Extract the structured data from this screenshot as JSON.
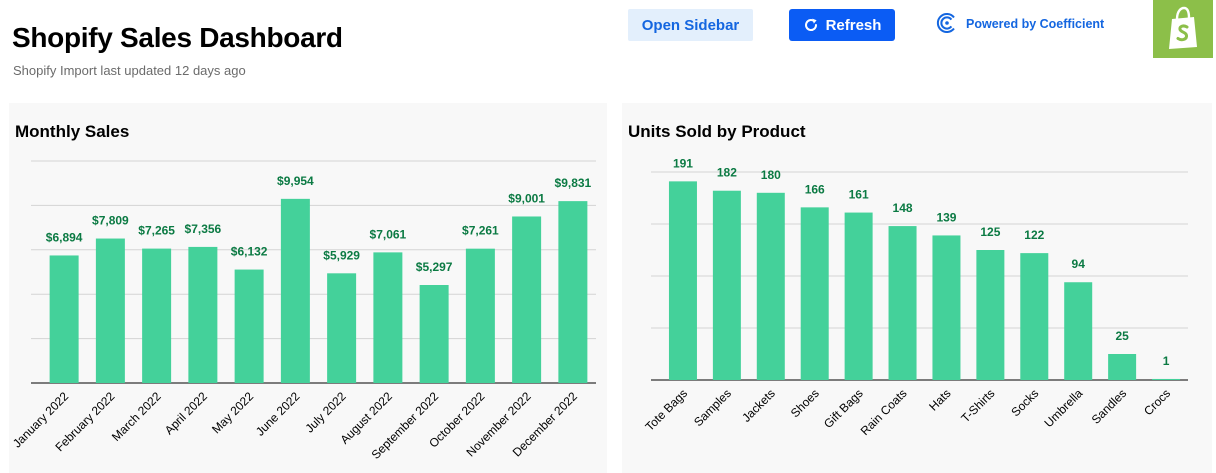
{
  "header": {
    "title": "Shopify Sales Dashboard",
    "subtitle": "Shopify Import last updated 12 days ago",
    "open_sidebar_label": "Open Sidebar",
    "refresh_label": "Refresh",
    "powered_by_label": "Powered by Coefficient"
  },
  "colors": {
    "bar": "#44d19a",
    "value_label": "#0b7a43",
    "accent_blue": "#0b5cf4",
    "shopify_green": "#8cbf49"
  },
  "icons": [
    "refresh-icon",
    "coefficient-logo-icon",
    "shopify-logo-icon"
  ],
  "chart_data": [
    {
      "type": "bar",
      "title": "Monthly Sales",
      "categories": [
        "January 2022",
        "February 2022",
        "March 2022",
        "April 2022",
        "May 2022",
        "June 2022",
        "July 2022",
        "August 2022",
        "September 2022",
        "October 2022",
        "November 2022",
        "December 2022"
      ],
      "values": [
        6894,
        7809,
        7265,
        7356,
        6132,
        9954,
        5929,
        7061,
        5297,
        7261,
        9001,
        9831
      ],
      "value_labels": [
        "$6,894",
        "$7,809",
        "$7,265",
        "$7,356",
        "$6,132",
        "$9,954",
        "$5,929",
        "$7,061",
        "$5,297",
        "$7,261",
        "$9,001",
        "$9,831"
      ],
      "ylim": [
        0,
        12000
      ],
      "grid": true
    },
    {
      "type": "bar",
      "title": "Units Sold by Product",
      "categories": [
        "Tote Bags",
        "Samples",
        "Jackets",
        "Shoes",
        "Gift Bags",
        "Rain Coats",
        "Hats",
        "T-Shirts",
        "Socks",
        "Umbrella",
        "Sandles",
        "Crocs"
      ],
      "values": [
        191,
        182,
        180,
        166,
        161,
        148,
        139,
        125,
        122,
        94,
        25,
        1
      ],
      "value_labels": [
        "191",
        "182",
        "180",
        "166",
        "161",
        "148",
        "139",
        "125",
        "122",
        "94",
        "25",
        "1"
      ],
      "ylim": [
        0,
        200
      ],
      "grid": true
    }
  ]
}
